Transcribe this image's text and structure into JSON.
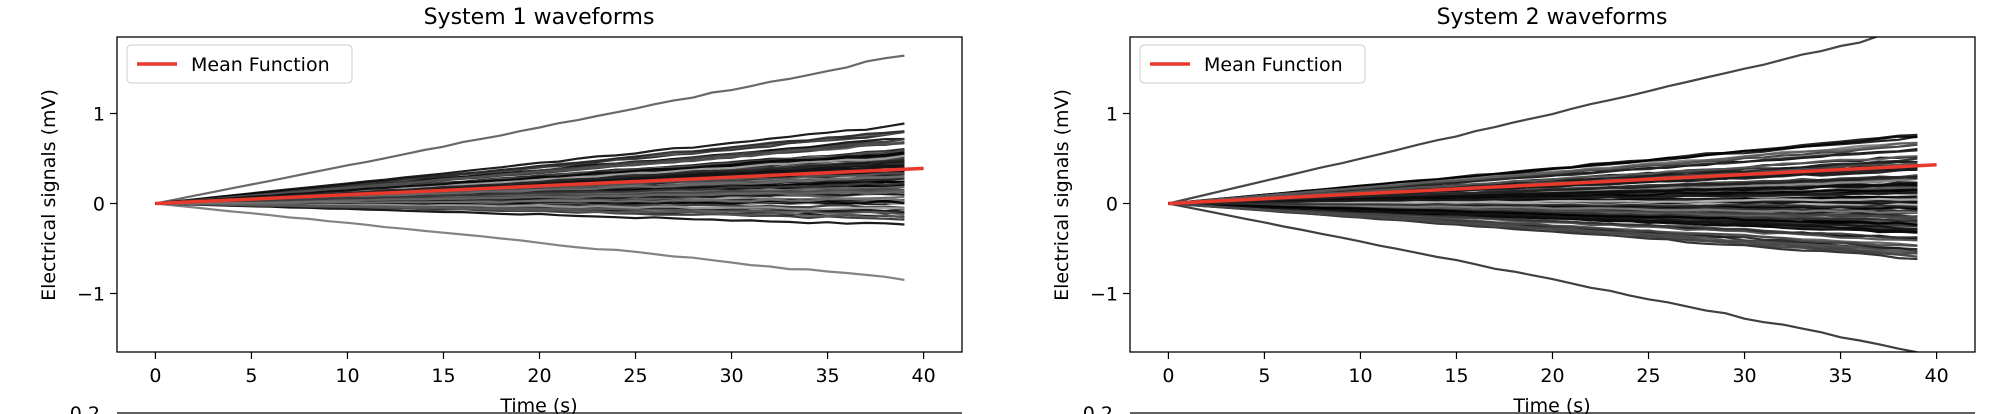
{
  "chart_data": [
    {
      "type": "line",
      "title": "System 1 waveforms",
      "xlabel": "Time (s)",
      "ylabel": "Electrical signals (mV)",
      "xlim": [
        -2,
        42
      ],
      "ylim": [
        -1.65,
        1.85
      ],
      "xticks": [
        0,
        5,
        10,
        15,
        20,
        25,
        30,
        35,
        40
      ],
      "yticks": [
        -1,
        0,
        1
      ],
      "legend": {
        "position": "top-left",
        "entries": [
          "Mean Function"
        ]
      },
      "waveforms": {
        "count": 100,
        "x_range": [
          0,
          39
        ],
        "end_min": -0.85,
        "end_max": 1.65,
        "colors": "grayscale black-to-light-gray"
      },
      "series": [
        {
          "name": "Mean Function",
          "color": "#e8392d",
          "x": [
            0,
            40
          ],
          "y": [
            0.0,
            0.39
          ]
        }
      ]
    },
    {
      "type": "line",
      "title": "System 2 waveforms",
      "xlabel": "Time (s)",
      "ylabel": "Electrical signals (mV)",
      "xlim": [
        -2,
        42
      ],
      "ylim": [
        -1.65,
        1.85
      ],
      "xticks": [
        0,
        5,
        10,
        15,
        20,
        25,
        30,
        35,
        40
      ],
      "yticks": [
        -1,
        0,
        1
      ],
      "legend": {
        "position": "top-left",
        "entries": [
          "Mean Function"
        ]
      },
      "waveforms": {
        "count": 120,
        "x_range": [
          0,
          39
        ],
        "end_min": -1.65,
        "end_max": 1.95,
        "colors": "grayscale black-to-light-gray"
      },
      "series": [
        {
          "name": "Mean Function",
          "color": "#e8392d",
          "x": [
            0,
            40
          ],
          "y": [
            0.0,
            0.43
          ]
        }
      ]
    }
  ],
  "partial_next_row": {
    "ytick_label": "0.2"
  }
}
